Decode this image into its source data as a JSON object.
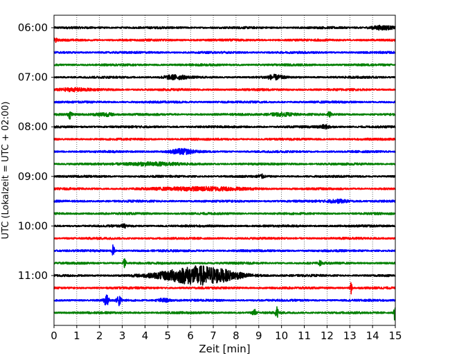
{
  "chart_data": {
    "type": "line",
    "subtype": "helicorder-seismogram",
    "xlabel": "Zeit  [min]",
    "ylabel": "UTC (Lokalzeit = UTC + 02:00)",
    "xlim": [
      0,
      15
    ],
    "x_ticks": [
      0,
      1,
      2,
      3,
      4,
      5,
      6,
      7,
      8,
      9,
      10,
      11,
      12,
      13,
      14,
      15
    ],
    "y_tick_labels": [
      "06:00",
      "07:00",
      "08:00",
      "09:00",
      "10:00",
      "11:00"
    ],
    "trace_start_times": [
      "06:00",
      "06:15",
      "06:30",
      "06:45",
      "07:00",
      "07:15",
      "07:30",
      "07:45",
      "08:00",
      "08:15",
      "08:30",
      "08:45",
      "09:00",
      "09:15",
      "09:30",
      "09:45",
      "10:00",
      "10:15",
      "10:30",
      "10:45",
      "11:00",
      "11:15",
      "11:30",
      "11:45"
    ],
    "trace_colors": [
      "#000000",
      "#ff0000",
      "#0000ff",
      "#008000"
    ],
    "grid": "vertical dotted at each minute",
    "events": [
      {
        "trace": 0,
        "minute": 14.4,
        "width": 0.35,
        "amp": 0.45
      },
      {
        "trace": 1,
        "minute": 0.05,
        "width": 0.05,
        "amp": 0.5
      },
      {
        "trace": 4,
        "minute": 5.3,
        "width": 0.35,
        "amp": 0.45
      },
      {
        "trace": 4,
        "minute": 9.7,
        "width": 0.25,
        "amp": 0.45
      },
      {
        "trace": 5,
        "minute": 0.8,
        "width": 0.5,
        "amp": 0.3
      },
      {
        "trace": 7,
        "minute": 0.7,
        "width": 0.05,
        "amp": 0.9
      },
      {
        "trace": 7,
        "minute": 2.2,
        "width": 0.3,
        "amp": 0.4
      },
      {
        "trace": 7,
        "minute": 10.0,
        "width": 0.4,
        "amp": 0.35
      },
      {
        "trace": 7,
        "minute": 12.1,
        "width": 0.05,
        "amp": 0.55
      },
      {
        "trace": 8,
        "minute": 11.9,
        "width": 0.2,
        "amp": 0.35
      },
      {
        "trace": 10,
        "minute": 5.6,
        "width": 0.35,
        "amp": 0.55
      },
      {
        "trace": 11,
        "minute": 4.2,
        "width": 0.8,
        "amp": 0.35
      },
      {
        "trace": 12,
        "minute": 9.1,
        "width": 0.1,
        "amp": 0.4
      },
      {
        "trace": 13,
        "minute": 6.5,
        "width": 1.2,
        "amp": 0.4
      },
      {
        "trace": 14,
        "minute": 12.5,
        "width": 0.35,
        "amp": 0.35
      },
      {
        "trace": 16,
        "minute": 3.1,
        "width": 0.1,
        "amp": 0.3
      },
      {
        "trace": 18,
        "minute": 2.6,
        "width": 0.04,
        "amp": 1.3
      },
      {
        "trace": 19,
        "minute": 3.1,
        "width": 0.04,
        "amp": 1.3
      },
      {
        "trace": 19,
        "minute": 11.7,
        "width": 0.04,
        "amp": 0.5
      },
      {
        "trace": 20,
        "minute": 6.35,
        "width": 1.1,
        "amp": 2.2
      },
      {
        "trace": 21,
        "minute": 13.05,
        "width": 0.03,
        "amp": 1.4
      },
      {
        "trace": 22,
        "minute": 2.3,
        "width": 0.08,
        "amp": 1.2
      },
      {
        "trace": 22,
        "minute": 2.85,
        "width": 0.06,
        "amp": 1.3
      },
      {
        "trace": 22,
        "minute": 4.8,
        "width": 0.2,
        "amp": 0.4
      },
      {
        "trace": 23,
        "minute": 8.8,
        "width": 0.05,
        "amp": 0.8
      },
      {
        "trace": 23,
        "minute": 9.8,
        "width": 0.04,
        "amp": 1.5
      },
      {
        "trace": 23,
        "minute": 14.98,
        "width": 0.03,
        "amp": 2.0
      }
    ]
  }
}
